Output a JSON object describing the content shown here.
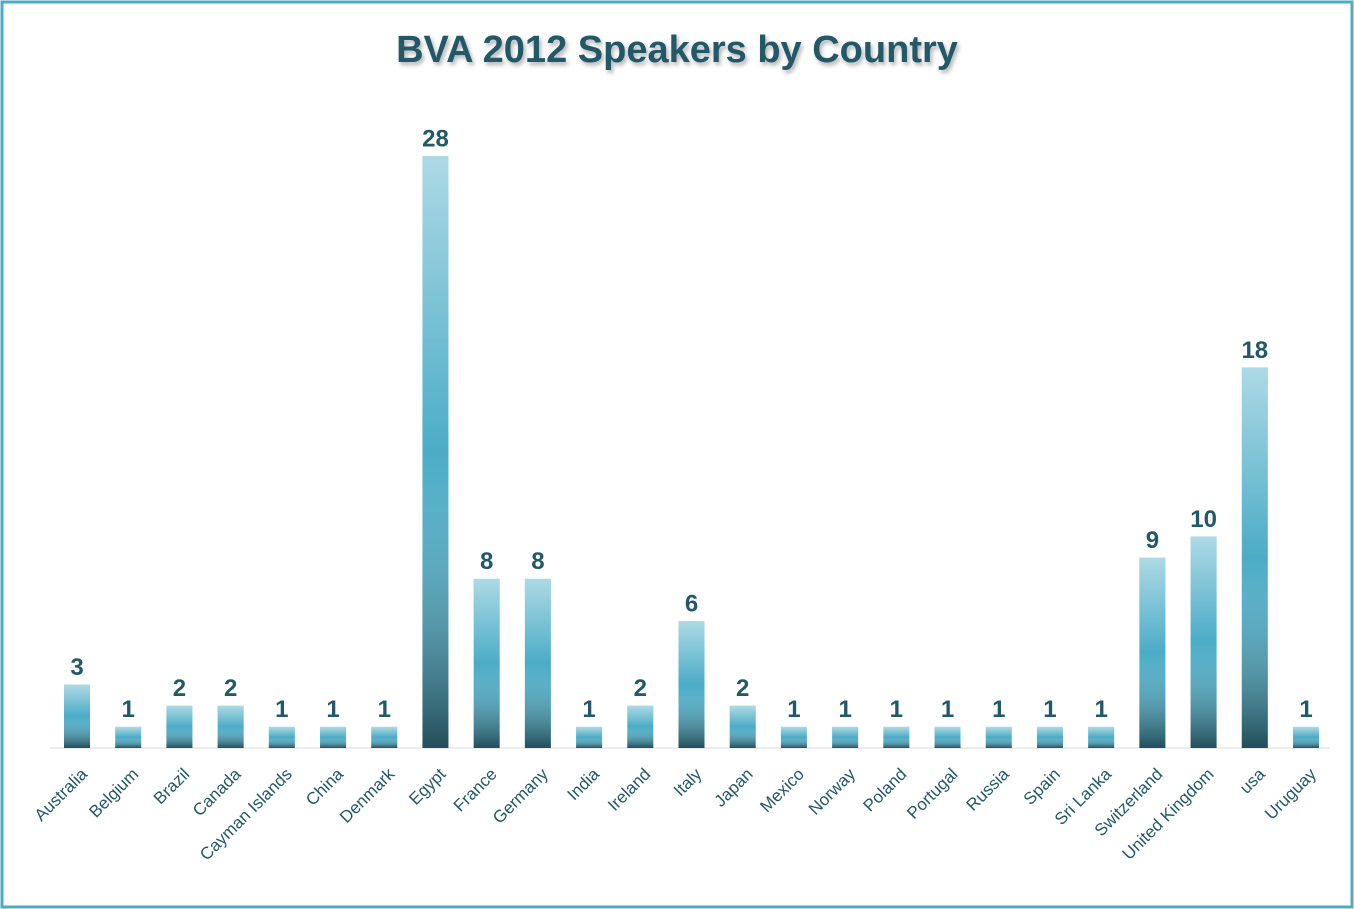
{
  "chart_data": {
    "type": "bar",
    "title": "BVA 2012 Speakers by Country",
    "categories": [
      "Australia",
      "Belgium",
      "Brazil",
      "Canada",
      "Cayman Islands",
      "China",
      "Denmark",
      "Egypt",
      "France",
      "Germany",
      "India",
      "Ireland",
      "Italy",
      "Japan",
      "Mexico",
      "Norway",
      "Poland",
      "Portugal",
      "Russia",
      "Spain",
      "Sri Lanka",
      "Switzerland",
      "United Kingdom",
      "usa",
      "Uruguay"
    ],
    "values": [
      3,
      1,
      2,
      2,
      1,
      1,
      1,
      28,
      8,
      8,
      1,
      2,
      6,
      2,
      1,
      1,
      1,
      1,
      1,
      1,
      1,
      9,
      10,
      18,
      1
    ],
    "color": "#4bacc6"
  }
}
